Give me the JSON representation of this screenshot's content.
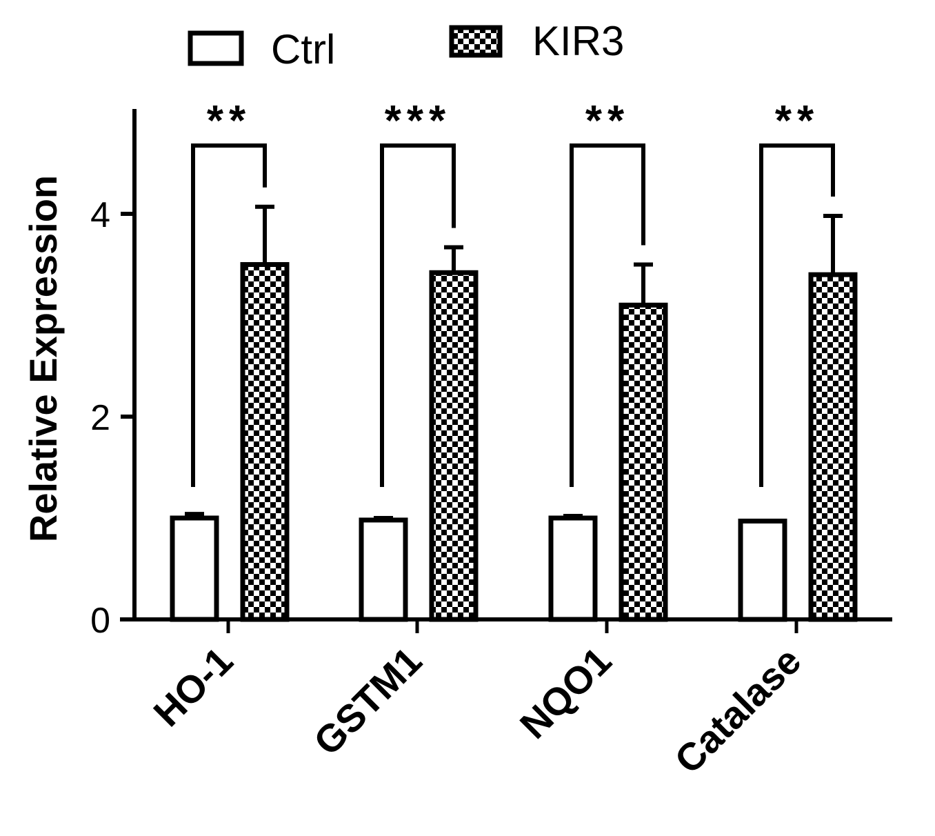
{
  "chart_data": {
    "type": "bar",
    "ylabel": "Relative Expression",
    "xlabel": "",
    "ylim": [
      0,
      5
    ],
    "yticks": [
      0,
      2,
      4
    ],
    "categories": [
      "HO-1",
      "GSTM1",
      "NQO1",
      "Catalase"
    ],
    "series": [
      {
        "name": "Ctrl",
        "pattern": "open",
        "values": [
          1.0,
          0.98,
          1.0,
          0.97
        ],
        "errors": [
          0.04,
          0.02,
          0.02,
          0.0
        ]
      },
      {
        "name": "KIR3",
        "pattern": "checkered",
        "values": [
          3.5,
          3.42,
          3.1,
          3.4
        ],
        "errors": [
          0.57,
          0.25,
          0.4,
          0.58
        ]
      }
    ],
    "significance": [
      "**",
      "***",
      "**",
      "**"
    ],
    "legend_position": "top",
    "grid": false
  },
  "colors": {
    "axis": "#000000",
    "bar_fill_ctrl": "#ffffff",
    "pattern_dark": "#000000",
    "pattern_light": "#ffffff"
  }
}
